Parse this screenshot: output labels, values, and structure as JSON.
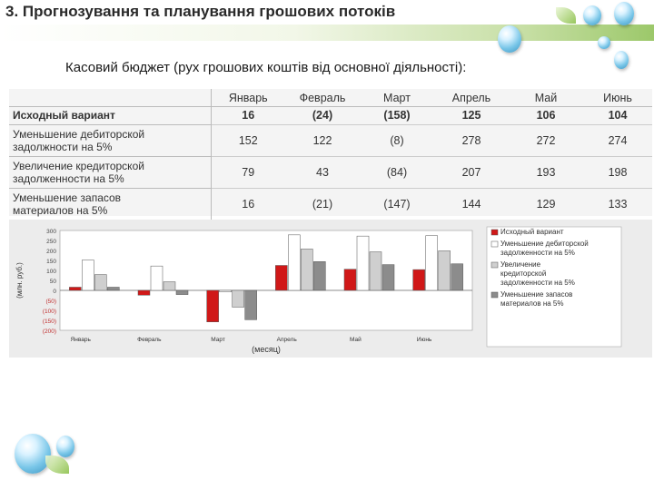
{
  "slide": {
    "title": "3. Прогнозування та планування грошових потоків",
    "subtitle": "Касовий бюджет (рух грошових коштів від основної діяльності):"
  },
  "table": {
    "columns": [
      "Январь",
      "Февраль",
      "Март",
      "Апрель",
      "Май",
      "Июнь"
    ],
    "rows": [
      {
        "label": [
          "Исходный вариант"
        ],
        "values": [
          "16",
          "(24)",
          "(158)",
          "125",
          "106",
          "104"
        ]
      },
      {
        "label": [
          "Уменьшение дебиторской",
          "задолжности на 5%"
        ],
        "values": [
          "152",
          "122",
          "(8)",
          "278",
          "272",
          "274"
        ]
      },
      {
        "label": [
          "Увеличение кредиторской",
          "задолженности на 5%"
        ],
        "values": [
          "79",
          "43",
          "(84)",
          "207",
          "193",
          "198"
        ]
      },
      {
        "label": [
          "Уменьшение запасов",
          "материалов на 5%"
        ],
        "values": [
          "16",
          "(21)",
          "(147)",
          "144",
          "129",
          "133"
        ]
      }
    ]
  },
  "chart_data": {
    "type": "bar",
    "categories": [
      "Январь",
      "Февраль",
      "Март",
      "Апрель",
      "Май",
      "Июнь"
    ],
    "series": [
      {
        "name": "Исходный вариант",
        "values": [
          16,
          -24,
          -158,
          125,
          106,
          104
        ],
        "color": "#d01818"
      },
      {
        "name": "Уменьшение дебиторской задолженности на 5%",
        "values": [
          152,
          122,
          -8,
          278,
          272,
          274
        ],
        "color": "#ffffff"
      },
      {
        "name": "Увеличение кредиторской задолженности на 5%",
        "values": [
          79,
          43,
          -84,
          207,
          193,
          198
        ],
        "color": "#cfcfcf"
      },
      {
        "name": "Уменьшение запасов материалов на 5%",
        "values": [
          16,
          -21,
          -147,
          144,
          129,
          133
        ],
        "color": "#8c8c8c"
      }
    ],
    "yticks": [
      "300",
      "250",
      "200",
      "150",
      "100",
      "50",
      "0",
      "(50)",
      "(100)",
      "(150)",
      "(200)"
    ],
    "ylim": [
      -200,
      300
    ],
    "xlabel": "(месяц)",
    "ylabel": "(млн. руб.)",
    "legend_position": "right",
    "grid": false
  }
}
